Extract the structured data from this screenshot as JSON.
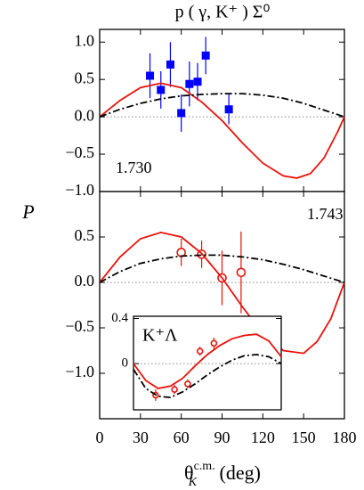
{
  "chart_data": [
    {
      "type": "scatter",
      "title": "p ( γ, K⁺ ) Σ⁰",
      "ylabel": "P",
      "label": "1.730",
      "xlim": [
        0,
        180
      ],
      "ylim": [
        -1,
        1.17
      ],
      "yticks": [
        {
          "value": 1,
          "label": "1.0"
        },
        {
          "value": 0.5,
          "label": "0.5"
        },
        {
          "value": 0,
          "label": "0.0"
        },
        {
          "value": -0.5,
          "label": "−0.5"
        },
        {
          "value": -1,
          "label": "−1.0"
        }
      ],
      "series": [
        {
          "kind": "points",
          "marker": "square",
          "color": "#0000ff",
          "x": [
            37,
            45,
            52,
            60,
            66,
            72,
            78,
            95
          ],
          "values": [
            0.55,
            0.36,
            0.7,
            0.05,
            0.44,
            0.47,
            0.82,
            0.1
          ],
          "errors": [
            0.3,
            0.25,
            0.3,
            0.25,
            0.3,
            0.25,
            0.25,
            0.2
          ]
        },
        {
          "kind": "curve",
          "style": "solid",
          "color": "#e8120c",
          "x": [
            0,
            15,
            30,
            45,
            60,
            75,
            90,
            105,
            120,
            135,
            145,
            155,
            165,
            175,
            180
          ],
          "values": [
            0,
            0.22,
            0.39,
            0.45,
            0.39,
            0.2,
            -0.05,
            -0.35,
            -0.62,
            -0.79,
            -0.82,
            -0.76,
            -0.55,
            -0.2,
            0
          ]
        },
        {
          "kind": "curve",
          "style": "dashdot",
          "color": "#000000",
          "x": [
            0,
            15,
            30,
            45,
            60,
            75,
            90,
            105,
            120,
            135,
            150,
            165,
            180
          ],
          "values": [
            0,
            0.1,
            0.18,
            0.24,
            0.28,
            0.3,
            0.31,
            0.31,
            0.29,
            0.25,
            0.18,
            0.09,
            0
          ]
        }
      ]
    },
    {
      "type": "scatter",
      "label": "1.743",
      "xlabel": {
        "symbol": "θ",
        "sub": "K",
        "sup": "c.m.",
        "unit": " (deg)"
      },
      "xlim": [
        0,
        180
      ],
      "ylim": [
        -1.5,
        1.0
      ],
      "xticks": [
        0,
        30,
        60,
        90,
        120,
        150,
        180
      ],
      "yticks": [
        {
          "value": 0.5,
          "label": "0.5"
        },
        {
          "value": 0,
          "label": "0.0"
        },
        {
          "value": -0.5,
          "label": "−0.5"
        },
        {
          "value": -1,
          "label": "−1.0"
        }
      ],
      "series": [
        {
          "kind": "points",
          "marker": "circle",
          "color": "#e8120c",
          "x": [
            60,
            75,
            90,
            104
          ],
          "values": [
            0.33,
            0.31,
            0.05,
            0.11
          ],
          "errors": [
            0.15,
            0.15,
            0.3,
            0.45
          ]
        },
        {
          "kind": "curve",
          "style": "solid",
          "color": "#e8120c",
          "x": [
            0,
            15,
            30,
            45,
            60,
            75,
            90,
            105,
            120,
            135,
            150,
            160,
            170,
            180
          ],
          "values": [
            0,
            0.28,
            0.48,
            0.55,
            0.5,
            0.32,
            0.05,
            -0.27,
            -0.56,
            -0.75,
            -0.78,
            -0.65,
            -0.4,
            0
          ]
        },
        {
          "kind": "curve",
          "style": "dashdot",
          "color": "#000000",
          "x": [
            0,
            15,
            30,
            45,
            60,
            75,
            90,
            105,
            120,
            135,
            150,
            165,
            180
          ],
          "values": [
            0,
            0.12,
            0.21,
            0.26,
            0.29,
            0.3,
            0.3,
            0.28,
            0.25,
            0.2,
            0.14,
            0.07,
            0
          ]
        }
      ]
    },
    {
      "type": "scatter",
      "label": "K⁺Λ",
      "xlim": [
        0,
        180
      ],
      "ylim": [
        -0.41,
        0.42
      ],
      "yticks": [
        {
          "value": 0.4,
          "label": "0.4"
        },
        0
      ],
      "series": [
        {
          "kind": "points",
          "marker": "circle",
          "color": "#e8120c",
          "x": [
            27,
            50,
            66,
            81,
            98
          ],
          "values": [
            -0.28,
            -0.23,
            -0.18,
            0.11,
            0.18
          ],
          "errors": [
            0.05,
            0.04,
            0.04,
            0.04,
            0.05
          ]
        },
        {
          "kind": "curve",
          "style": "solid",
          "color": "#e8120c",
          "x": [
            0,
            15,
            30,
            45,
            60,
            75,
            90,
            105,
            120,
            135,
            150,
            165,
            180
          ],
          "values": [
            0,
            -0.15,
            -0.22,
            -0.2,
            -0.13,
            -0.02,
            0.08,
            0.16,
            0.22,
            0.25,
            0.26,
            0.2,
            0.06
          ]
        },
        {
          "kind": "curve",
          "style": "dashdot",
          "color": "#000000",
          "x": [
            0,
            15,
            30,
            45,
            60,
            75,
            90,
            105,
            120,
            135,
            150,
            165,
            180
          ],
          "values": [
            -0.05,
            -0.22,
            -0.29,
            -0.3,
            -0.25,
            -0.18,
            -0.1,
            -0.03,
            0.03,
            0.07,
            0.08,
            0.06,
            0
          ]
        }
      ]
    }
  ]
}
